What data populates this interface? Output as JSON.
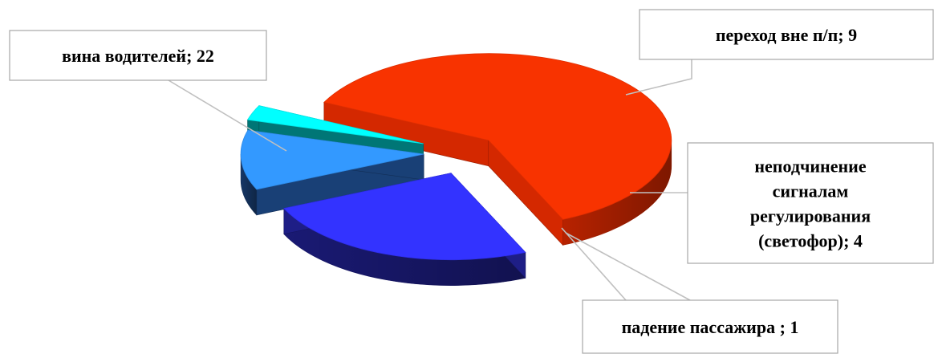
{
  "chart_data": {
    "type": "pie",
    "title": "",
    "categories": [
      "вина водителей",
      "переход вне п/п",
      "неподчинение сигналам регулирования (светофор)",
      "падение пассажира "
    ],
    "values": [
      22,
      9,
      4,
      1
    ],
    "data_labels": [
      [
        "вина водителей; 22"
      ],
      [
        "переход вне п/п; 9"
      ],
      [
        "неподчинение",
        "сигналам",
        "регулирования",
        "(светофор); 4"
      ],
      [
        "падение пассажира ; 1"
      ]
    ],
    "colors": [
      "#f83300",
      "#3333ff",
      "#3399ff",
      "#00ffff"
    ],
    "side_colors": [
      "#c12400",
      "#1b1b7a",
      "#173a6b",
      "#006b6b"
    ],
    "style": "3d-exploded",
    "legend": "none"
  }
}
